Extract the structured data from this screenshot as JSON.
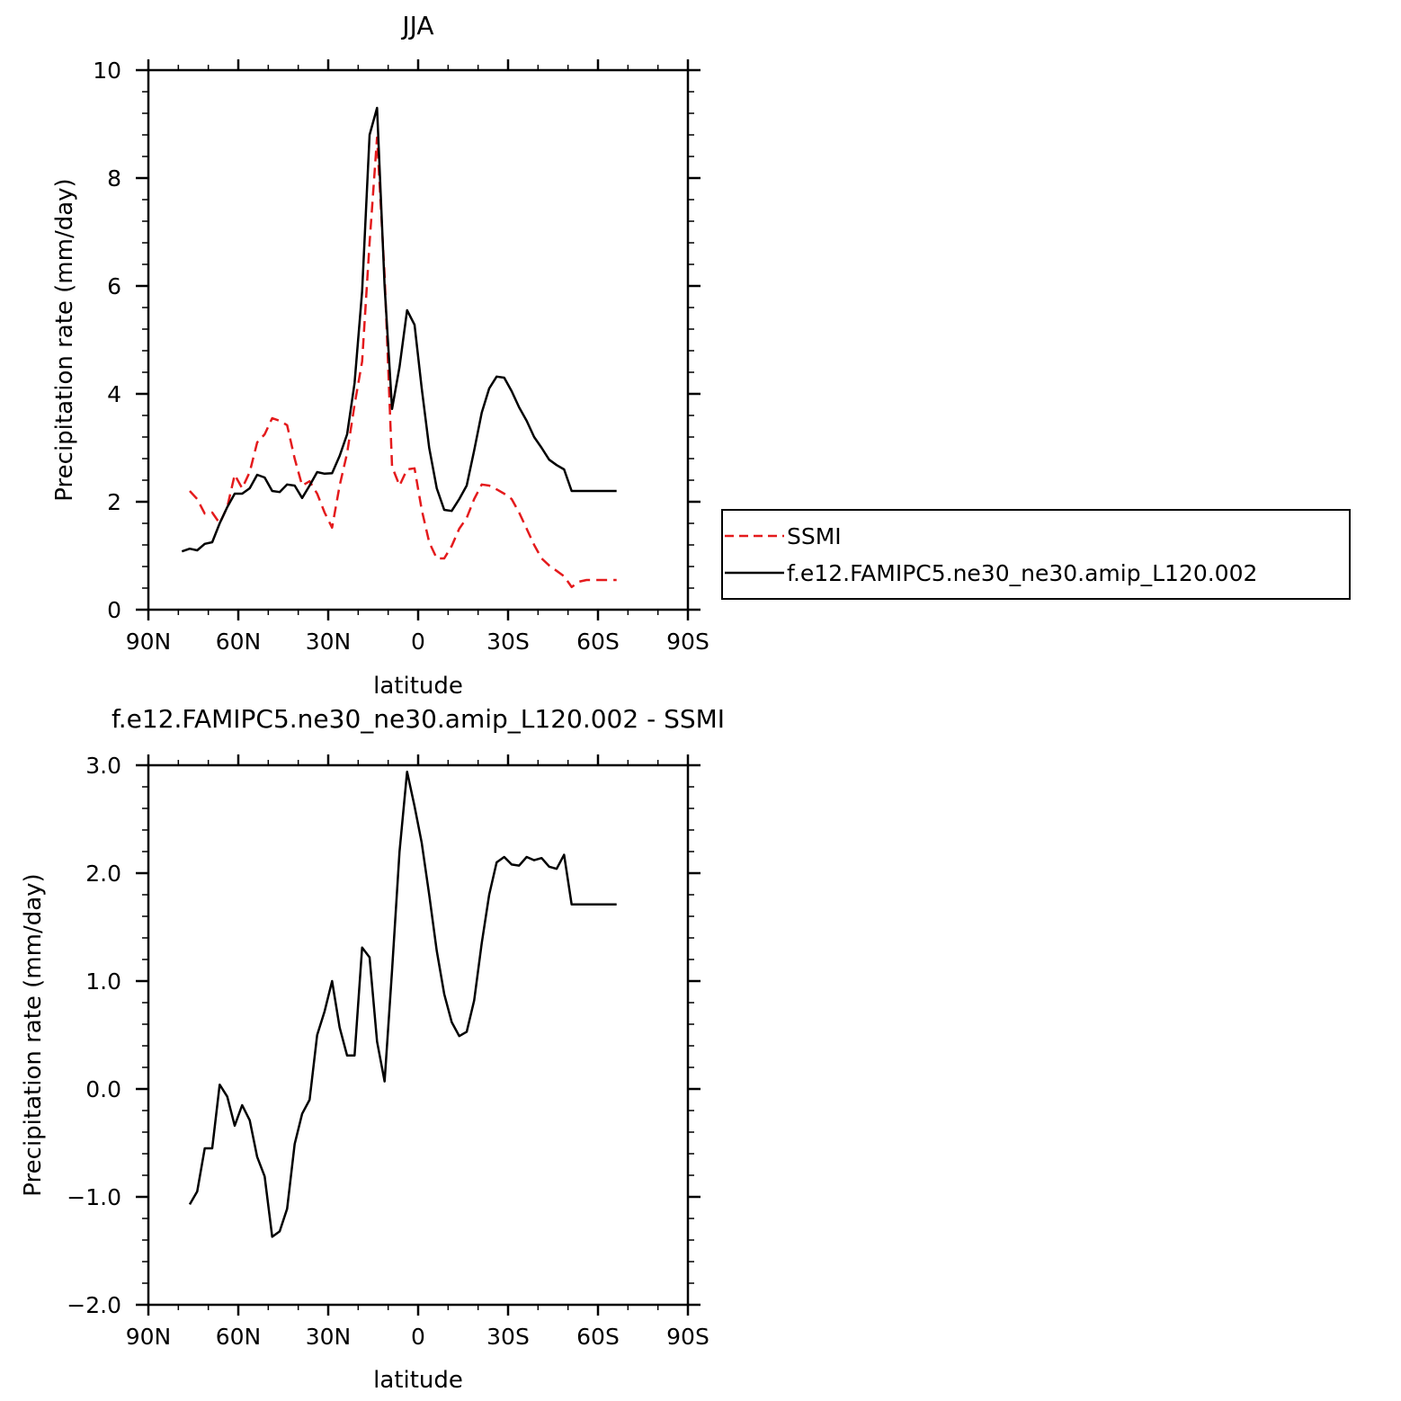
{
  "figure": {
    "panels": [
      {
        "title": "JJA",
        "xlabel": "latitude",
        "ylabel": "Precipitation rate (mm/day)",
        "legend": {
          "placement": "right",
          "entries": [
            "SSMI",
            "f.e12.FAMIPC5.ne30_ne30.amip_L120.002"
          ]
        }
      },
      {
        "title": "f.e12.FAMIPC5.ne30_ne30.amip_L120.002 - SSMI",
        "xlabel": "latitude",
        "ylabel": "Precipitation rate (mm/day)"
      }
    ]
  },
  "chart_data": [
    {
      "type": "line",
      "title": "JJA",
      "xlabel": "latitude",
      "ylabel": "Precipitation rate (mm/day)",
      "xlim": [
        -90,
        90
      ],
      "ylim": [
        0,
        10
      ],
      "x_ticks": [
        -90,
        -60,
        -30,
        0,
        30,
        60,
        90
      ],
      "x_tick_labels": [
        "90N",
        "60N",
        "30N",
        "0",
        "30S",
        "60S",
        "90S"
      ],
      "y_ticks": [
        0,
        2,
        4,
        6,
        8,
        10
      ],
      "y_tick_labels": [
        "0",
        "2",
        "4",
        "6",
        "8",
        "10"
      ],
      "grid": false,
      "legend_position": "right",
      "series": [
        {
          "name": "SSMI",
          "color": "#e41a1c",
          "dash": "dashed",
          "x": [
            -76.2,
            -73.7,
            -71.2,
            -68.7,
            -66.2,
            -63.7,
            -61.2,
            -58.7,
            -56.2,
            -53.7,
            -51.2,
            -48.7,
            -46.2,
            -43.7,
            -41.2,
            -38.7,
            -36.2,
            -33.7,
            -31.2,
            -28.7,
            -26.2,
            -23.7,
            -21.2,
            -18.7,
            -16.2,
            -13.7,
            -11.2,
            -8.7,
            -6.2,
            -3.7,
            -1.2,
            1.2,
            3.7,
            6.2,
            8.7,
            11.2,
            13.7,
            16.2,
            18.7,
            21.2,
            23.7,
            26.2,
            28.7,
            31.2,
            33.7,
            36.2,
            38.7,
            41.2,
            43.7,
            46.2,
            48.7,
            51.2,
            53.7,
            56.2,
            58.7,
            61.2,
            63.7,
            66.2
          ],
          "y": [
            2.2,
            2.05,
            1.78,
            1.8,
            1.6,
            1.9,
            2.5,
            2.25,
            2.55,
            3.1,
            3.25,
            3.55,
            3.5,
            3.42,
            2.8,
            2.3,
            2.38,
            2.15,
            1.8,
            1.52,
            2.3,
            2.9,
            3.8,
            4.6,
            6.8,
            8.75,
            6.2,
            2.65,
            2.3,
            2.6,
            2.62,
            1.85,
            1.25,
            0.95,
            0.95,
            1.18,
            1.5,
            1.7,
            2.05,
            2.32,
            2.3,
            2.23,
            2.15,
            2.05,
            1.8,
            1.5,
            1.2,
            0.95,
            0.82,
            0.72,
            0.62,
            0.42,
            0.52,
            0.55,
            0.55,
            0.55,
            0.55,
            0.55
          ]
        },
        {
          "name": "f.e12.FAMIPC5.ne30_ne30.amip_L120.002",
          "color": "#000000",
          "dash": "solid",
          "x": [
            -78.8,
            -76.2,
            -73.7,
            -71.2,
            -68.7,
            -66.2,
            -63.7,
            -61.2,
            -58.7,
            -56.2,
            -53.7,
            -51.2,
            -48.7,
            -46.2,
            -43.7,
            -41.2,
            -38.7,
            -36.2,
            -33.7,
            -31.2,
            -28.7,
            -26.2,
            -23.7,
            -21.2,
            -18.7,
            -16.2,
            -13.7,
            -11.2,
            -8.7,
            -6.2,
            -3.7,
            -1.2,
            1.2,
            3.7,
            6.2,
            8.7,
            11.2,
            13.7,
            16.2,
            18.7,
            21.2,
            23.7,
            26.2,
            28.7,
            31.2,
            33.7,
            36.2,
            38.7,
            41.2,
            43.7,
            46.2,
            48.7,
            51.2,
            53.7,
            56.2,
            58.7,
            61.2,
            63.7,
            66.2
          ],
          "y": [
            1.08,
            1.13,
            1.1,
            1.22,
            1.25,
            1.6,
            1.9,
            2.15,
            2.15,
            2.25,
            2.5,
            2.45,
            2.2,
            2.18,
            2.32,
            2.3,
            2.07,
            2.3,
            2.55,
            2.52,
            2.53,
            2.85,
            3.25,
            4.2,
            5.9,
            8.8,
            9.3,
            6.0,
            3.72,
            4.5,
            5.55,
            5.28,
            4.1,
            3.0,
            2.25,
            1.85,
            1.83,
            2.05,
            2.3,
            2.95,
            3.65,
            4.1,
            4.32,
            4.3,
            4.05,
            3.75,
            3.5,
            3.2,
            3.0,
            2.78,
            2.68,
            2.6,
            2.2,
            2.2,
            2.2,
            2.2,
            2.2,
            2.2,
            2.2
          ]
        }
      ]
    },
    {
      "type": "line",
      "title": "f.e12.FAMIPC5.ne30_ne30.amip_L120.002 - SSMI",
      "xlabel": "latitude",
      "ylabel": "Precipitation rate (mm/day)",
      "xlim": [
        -90,
        90
      ],
      "ylim": [
        -2.0,
        3.0
      ],
      "x_ticks": [
        -90,
        -60,
        -30,
        0,
        30,
        60,
        90
      ],
      "x_tick_labels": [
        "90N",
        "60N",
        "30N",
        "0",
        "30S",
        "60S",
        "90S"
      ],
      "y_ticks": [
        -2.0,
        -1.0,
        0.0,
        1.0,
        2.0,
        3.0
      ],
      "y_tick_labels": [
        "-2.0",
        "-1.0",
        "0.0",
        "1.0",
        "2.0",
        "3.0"
      ],
      "grid": false,
      "series": [
        {
          "color": "#000000",
          "dash": "solid",
          "x": [
            -76.2,
            -73.7,
            -71.2,
            -68.7,
            -66.2,
            -63.7,
            -61.2,
            -58.7,
            -56.2,
            -53.7,
            -51.2,
            -48.7,
            -46.2,
            -43.7,
            -41.2,
            -38.7,
            -36.2,
            -33.7,
            -31.2,
            -28.7,
            -26.2,
            -23.7,
            -21.2,
            -18.7,
            -16.2,
            -13.7,
            -11.2,
            -8.7,
            -6.2,
            -3.7,
            -1.2,
            1.2,
            3.7,
            6.2,
            8.7,
            11.2,
            13.7,
            16.2,
            18.7,
            21.2,
            23.7,
            26.2,
            28.7,
            31.2,
            33.7,
            36.2,
            38.7,
            41.2,
            43.7,
            46.2,
            48.7,
            51.2,
            53.7,
            56.2,
            58.7,
            61.2,
            63.7,
            66.2
          ],
          "y": [
            -1.07,
            -0.95,
            -0.55,
            -0.55,
            0.04,
            -0.07,
            -0.34,
            -0.15,
            -0.29,
            -0.63,
            -0.81,
            -1.37,
            -1.32,
            -1.11,
            -0.51,
            -0.23,
            -0.1,
            0.5,
            0.72,
            1.0,
            0.57,
            0.31,
            0.31,
            1.31,
            1.22,
            0.44,
            0.07,
            1.1,
            2.2,
            2.94,
            2.62,
            2.28,
            1.8,
            1.28,
            0.88,
            0.62,
            0.49,
            0.53,
            0.82,
            1.35,
            1.8,
            2.1,
            2.15,
            2.08,
            2.07,
            2.15,
            2.12,
            2.14,
            2.06,
            2.04,
            2.17,
            1.71,
            1.71,
            1.71,
            1.71,
            1.71,
            1.71,
            1.71
          ]
        }
      ]
    }
  ]
}
